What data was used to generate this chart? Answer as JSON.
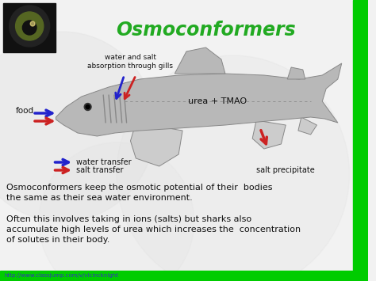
{
  "title": "Osmoconformers",
  "title_color": "#22aa22",
  "title_fontsize": 17,
  "bg_color": "#f2f2f2",
  "body_text1": "Osmoconformers keep the osmotic potential of their  bodies\nthe same as their sea water environment.",
  "body_text2": "Often this involves taking in ions (salts) but sharks also\naccumulate high levels of urea which increases the  concentration\nof solutes in their body.",
  "url_text": "http://www.classjump.com/v/vicincknight",
  "label_food": "food",
  "label_gills": "water and salt\nabsorption through gills",
  "label_urea": "urea + TMAO",
  "label_salt": "salt precipitate",
  "label_water_transfer": "water transfer",
  "label_salt_transfer": "salt transfer",
  "blue_color": "#2222cc",
  "red_color": "#cc2222",
  "shark_color": "#b8b8b8",
  "shark_edge": "#888888",
  "shark_light": "#cccccc",
  "text_color": "#111111",
  "green_right": "#00cc00",
  "green_bottom": "#00cc00",
  "circle_color": "#e0e0e0",
  "img_bg": "#111111",
  "img_eye_outer": "#555555",
  "img_eye_mid": "#cc9900",
  "img_eye_inner": "#111111"
}
